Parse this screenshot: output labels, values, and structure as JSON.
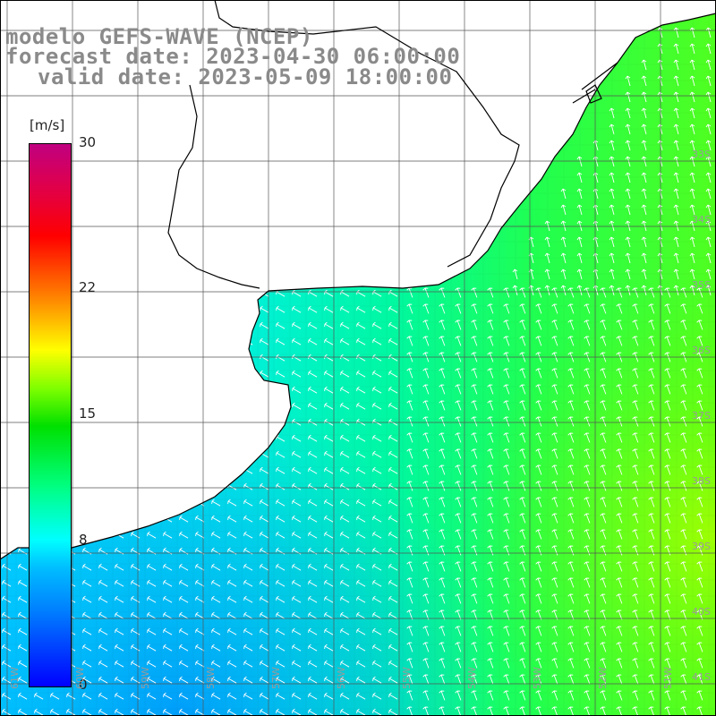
{
  "title": {
    "line1": "modelo GEFS-WAVE (NCEP)",
    "line2": "forecast date: 2023-04-30 06:00:00",
    "line3": "valid date: 2023-05-09 18:00:00"
  },
  "colorbar": {
    "unit": "[m/s]",
    "ticks": [
      {
        "label": "30",
        "value": 30
      },
      {
        "label": "22",
        "value": 22
      },
      {
        "label": "15",
        "value": 15
      },
      {
        "label": "8",
        "value": 8
      },
      {
        "label": "0",
        "value": 0
      }
    ],
    "range": [
      0,
      30
    ]
  },
  "map": {
    "field": "wind speed",
    "ocean_color": "#33ffcc",
    "land_color": "#ffffff",
    "grid_color": "#555555",
    "coast_color": "#000000",
    "arrow_color": "#ffffff",
    "lon_labels": [
      "61W",
      "60W",
      "59W",
      "58W",
      "57W",
      "56W",
      "55W",
      "54W",
      "53W",
      "52W",
      "51W"
    ],
    "lat_labels": [
      "33S",
      "34S",
      "35S",
      "36S",
      "37S",
      "38S",
      "39S",
      "40S",
      "41S"
    ]
  }
}
